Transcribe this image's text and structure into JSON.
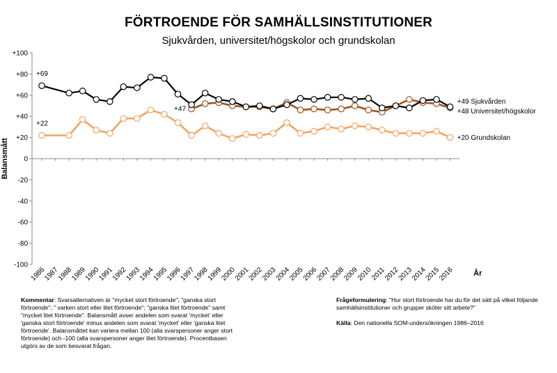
{
  "chart_data": {
    "type": "line",
    "title": "FÖRTROENDE FÖR SAMHÄLLSINSTITUTIONER",
    "subtitle": "Sjukvården, universitet/högskolor och grundskolan",
    "ylabel": "Balansmått",
    "xlabel": "År",
    "ylim": [
      -100,
      100
    ],
    "yticks": [
      "+100",
      "+80",
      "+60",
      "+40",
      "+20",
      "0",
      "-20",
      "-40",
      "-60",
      "-80",
      "-100"
    ],
    "categories": [
      "1986",
      "1987",
      "1988",
      "1989",
      "1990",
      "1991",
      "1992",
      "1993",
      "1994",
      "1995",
      "1996",
      "1997",
      "1998",
      "1999",
      "2000",
      "2001",
      "2002",
      "2003",
      "2004",
      "2005",
      "2006",
      "2007",
      "2008",
      "2009",
      "2010",
      "2011",
      "2012",
      "2013",
      "2014",
      "2015",
      "2016"
    ],
    "series": [
      {
        "name": "Sjukvården",
        "color": "#000000",
        "start_label": "+69",
        "end_label": "+49 Sjukvården",
        "values": [
          69,
          null,
          62,
          64,
          56,
          54,
          68,
          67,
          77,
          76,
          61,
          51,
          62,
          56,
          54,
          49,
          50,
          47,
          51,
          57,
          56,
          58,
          58,
          56,
          57,
          48,
          50,
          48,
          55,
          56,
          49
        ]
      },
      {
        "name": "Universitet/högskolor",
        "color": "#a0521d",
        "start_label": "+47",
        "end_label": "+48 Universitet/högskolor",
        "values": [
          null,
          null,
          null,
          null,
          null,
          null,
          null,
          null,
          null,
          null,
          null,
          47,
          52,
          53,
          50,
          49,
          49,
          47,
          53,
          46,
          47,
          46,
          47,
          50,
          46,
          44,
          50,
          56,
          53,
          52,
          48
        ]
      },
      {
        "name": "Grundskolan",
        "color": "#f4a460",
        "start_label": "+22",
        "end_label": "+20 Grundskolan",
        "values": [
          22,
          null,
          22,
          37,
          27,
          24,
          38,
          38,
          46,
          42,
          34,
          22,
          31,
          24,
          19,
          23,
          22,
          24,
          34,
          24,
          26,
          30,
          28,
          31,
          30,
          27,
          24,
          24,
          24,
          26,
          20
        ]
      }
    ]
  },
  "footer": {
    "comment_label": "Kommentar",
    "comment_text": ": Svarsalternativen är \"mycket stort förtroende\"; \"ganska stort förtroende\"; \" varken stort eller litet förtroende\"; \"ganska litet förtroende\" samt \"mycket litet förtroende\". Balansmått avser andelen som svarat 'mycket' eller 'ganska stort förtroende' minus andelen som svarat 'mycket' eller 'ganska litet förtroende'. Balansmåttet kan variera mellan 100 (alla svarspersoner anger stort förtroende) och -100 (alla svarspersoner anger litet förtroende). Procentbasen utgörs av de som besvarat frågan.",
    "question_label": "Frågeformulering",
    "question_text": ": \"Hur stort förtroende har du för det sätt på vilket följande samhällsinstitutioner och grupper sköter sitt arbete?\"",
    "source_label": "Källa",
    "source_text": ": Den nationella SOM-undersökningen 1986–2016"
  }
}
